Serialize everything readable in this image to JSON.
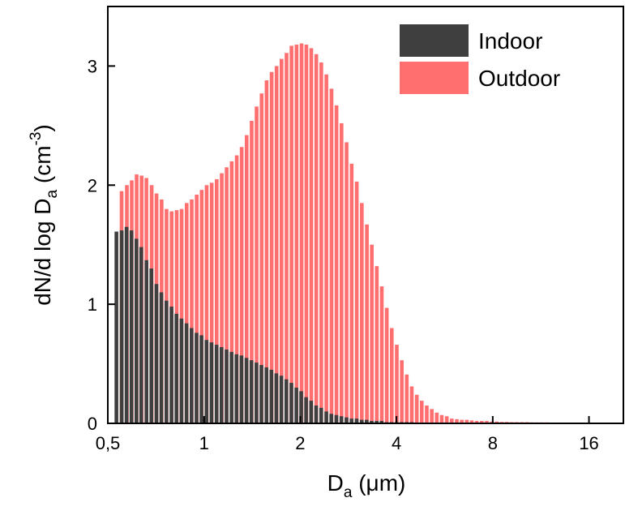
{
  "chart_data": {
    "type": "bar",
    "x_scale": "log2",
    "xlim": [
      0.5,
      20.5
    ],
    "ylim": [
      0,
      3.5
    ],
    "x_ticks": [
      0.5,
      1,
      2,
      4,
      8,
      16
    ],
    "x_tick_labels": [
      "0,5",
      "1",
      "2",
      "4",
      "8",
      "16"
    ],
    "y_ticks": [
      0,
      1,
      2,
      3
    ],
    "y_tick_labels": [
      "0",
      "1",
      "2",
      "3"
    ],
    "xlabel": {
      "main": "D",
      "sub": "a",
      "rest": " (μm)"
    },
    "ylabel": {
      "part1": "dN/d log D",
      "sub": "a",
      "part2": " (cm",
      "sup": "-3",
      "part3": ")"
    },
    "legend_position": "top-right",
    "x": [
      0.542,
      0.563,
      0.583,
      0.604,
      0.626,
      0.648,
      0.673,
      0.697,
      0.723,
      0.749,
      0.777,
      0.806,
      0.835,
      0.866,
      0.898,
      0.931,
      0.965,
      1.0,
      1.037,
      1.075,
      1.115,
      1.155,
      1.198,
      1.242,
      1.287,
      1.334,
      1.383,
      1.433,
      1.486,
      1.54,
      1.597,
      1.655,
      1.715,
      1.778,
      1.843,
      1.911,
      1.981,
      2.051,
      2.125,
      2.203,
      2.284,
      2.369,
      2.458,
      2.548,
      2.642,
      2.74,
      2.842,
      2.948,
      3.058,
      3.172,
      3.286,
      3.406,
      3.531,
      3.66,
      3.794,
      3.934,
      4.078,
      4.227,
      4.382,
      4.543,
      4.709,
      4.882,
      5.061,
      5.246,
      5.438,
      5.638,
      5.845,
      6.06,
      6.282,
      6.513,
      6.751,
      6.999,
      7.255,
      7.522,
      7.798,
      8.084,
      8.381,
      8.688,
      9.007,
      9.337,
      9.68,
      10.04,
      10.4,
      10.79,
      11.18,
      11.59,
      12.02,
      12.46,
      12.92,
      13.39,
      13.88,
      14.39,
      14.92,
      15.47,
      16.04,
      16.62,
      17.23,
      17.87,
      18.52,
      19.2
    ],
    "series": [
      {
        "name": "Indoor",
        "color": "#3f3f3f",
        "values": [
          1.61,
          1.62,
          1.65,
          1.62,
          1.55,
          1.48,
          1.37,
          1.3,
          1.17,
          1.1,
          1.03,
          0.98,
          0.92,
          0.88,
          0.84,
          0.8,
          0.76,
          0.74,
          0.7,
          0.68,
          0.66,
          0.64,
          0.62,
          0.6,
          0.58,
          0.57,
          0.55,
          0.53,
          0.51,
          0.49,
          0.47,
          0.45,
          0.42,
          0.4,
          0.37,
          0.34,
          0.3,
          0.27,
          0.22,
          0.19,
          0.15,
          0.13,
          0.1,
          0.08,
          0.07,
          0.06,
          0.05,
          0.04,
          0.04,
          0.03,
          0.03,
          0.02,
          0.02,
          0.02,
          0.01,
          0.01,
          0.01,
          0.01,
          0.01,
          0.01,
          0.005,
          0.005,
          0.005,
          0.005,
          0.005,
          0.003,
          0.003,
          0.003,
          0.003,
          0.003,
          0.002,
          0.002,
          0.002,
          0.002,
          0.002,
          0.002,
          0.002,
          0.002,
          0.002,
          0.002,
          0.001,
          0.001,
          0.001,
          0.001,
          0.001,
          0.001,
          0.001,
          0.001,
          0.001,
          0.001,
          0.001,
          0.001,
          0.001,
          0.001,
          0.001,
          0.001,
          0.001,
          0.001,
          0.001,
          0.001
        ]
      },
      {
        "name": "Outdoor",
        "color": "#ff6f6f",
        "values": [
          1.95,
          2.0,
          2.04,
          2.09,
          2.08,
          2.06,
          2.0,
          1.93,
          1.88,
          1.8,
          1.78,
          1.79,
          1.8,
          1.85,
          1.88,
          1.92,
          1.96,
          2.0,
          2.02,
          2.05,
          2.1,
          2.15,
          2.2,
          2.25,
          2.32,
          2.42,
          2.54,
          2.66,
          2.77,
          2.88,
          2.95,
          3.0,
          3.06,
          3.11,
          3.17,
          3.18,
          3.19,
          3.18,
          3.15,
          3.1,
          3.03,
          2.93,
          2.81,
          2.67,
          2.52,
          2.36,
          2.18,
          2.03,
          1.85,
          1.67,
          1.5,
          1.32,
          1.15,
          0.97,
          0.8,
          0.66,
          0.53,
          0.41,
          0.31,
          0.24,
          0.19,
          0.15,
          0.12,
          0.09,
          0.07,
          0.06,
          0.04,
          0.035,
          0.03,
          0.03,
          0.025,
          0.02,
          0.02,
          0.02,
          0.015,
          0.015,
          0.012,
          0.012,
          0.01,
          0.01,
          0.01,
          0.01,
          0.008,
          0.008,
          0.008,
          0.008,
          0.006,
          0.006,
          0.006,
          0.006,
          0.005,
          0.005,
          0.005,
          0.005,
          0.005,
          0.004,
          0.004,
          0.004,
          0.004,
          0.004
        ]
      }
    ]
  }
}
